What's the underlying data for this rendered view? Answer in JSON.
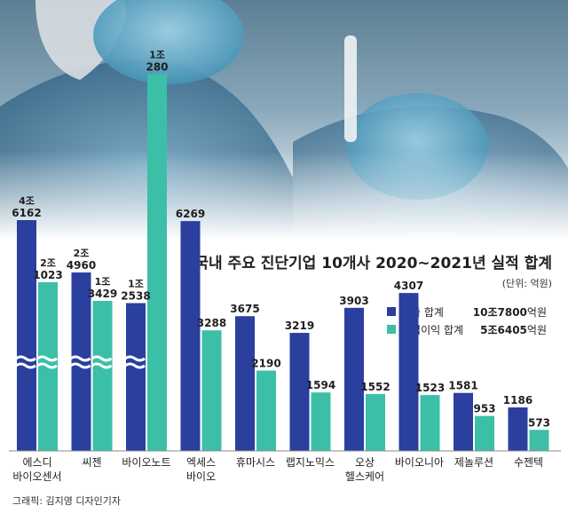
{
  "title": "국내 주요 진단기업 10개사 2020~2021년 실적 합계",
  "unit_note": "(단위: 억원)",
  "credit": "그래픽: 김지영 디자인기자",
  "legend": {
    "items": [
      {
        "label": "매출 합계",
        "total_num": "10조7800",
        "total_unit": "억원",
        "color": "#2a3f9e"
      },
      {
        "label": "영업이익 합계",
        "total_num": "5조6405",
        "total_unit": "억원",
        "color": "#3cbfa7"
      }
    ]
  },
  "chart_data": {
    "type": "bar",
    "title": "국내 주요 진단기업 10개사 2020~2021년 실적 합계",
    "ylabel": "(단위: 억원)",
    "axis_break": true,
    "legend_position": "top-right",
    "categories": [
      [
        "에스디",
        "바이오센서"
      ],
      [
        "씨젠"
      ],
      [
        "바이오노트"
      ],
      [
        "엑세스",
        "바이오"
      ],
      [
        "휴마시스"
      ],
      [
        "랩지노믹스"
      ],
      [
        "오상",
        "헬스케어"
      ],
      [
        "바이오니아"
      ],
      [
        "제놀루션"
      ],
      [
        "수젠텍"
      ]
    ],
    "series": [
      {
        "name": "매출 합계",
        "color": "#2a3f9e",
        "values": [
          46162,
          24960,
          12538,
          6269,
          3675,
          3219,
          3903,
          4307,
          1581,
          1186
        ],
        "labels": [
          [
            "4조",
            "6162"
          ],
          [
            "2조",
            "4960"
          ],
          [
            "1조",
            "2538"
          ],
          [
            "6269"
          ],
          [
            "3675"
          ],
          [
            "3219"
          ],
          [
            "3903"
          ],
          [
            "4307"
          ],
          [
            "1581"
          ],
          [
            "1186"
          ]
        ]
      },
      {
        "name": "영업이익 합계",
        "color": "#3cbfa7",
        "values": [
          21023,
          13429,
          10280,
          3288,
          2190,
          1594,
          1552,
          1523,
          953,
          573
        ],
        "labels": [
          [
            "2조",
            "1023"
          ],
          [
            "1조",
            "3429"
          ],
          [
            "1조",
            "280"
          ],
          [
            "3288"
          ],
          [
            "2190"
          ],
          [
            "1594"
          ],
          [
            "1552"
          ],
          [
            "1523"
          ],
          [
            "953"
          ],
          [
            "573"
          ]
        ]
      }
    ]
  }
}
